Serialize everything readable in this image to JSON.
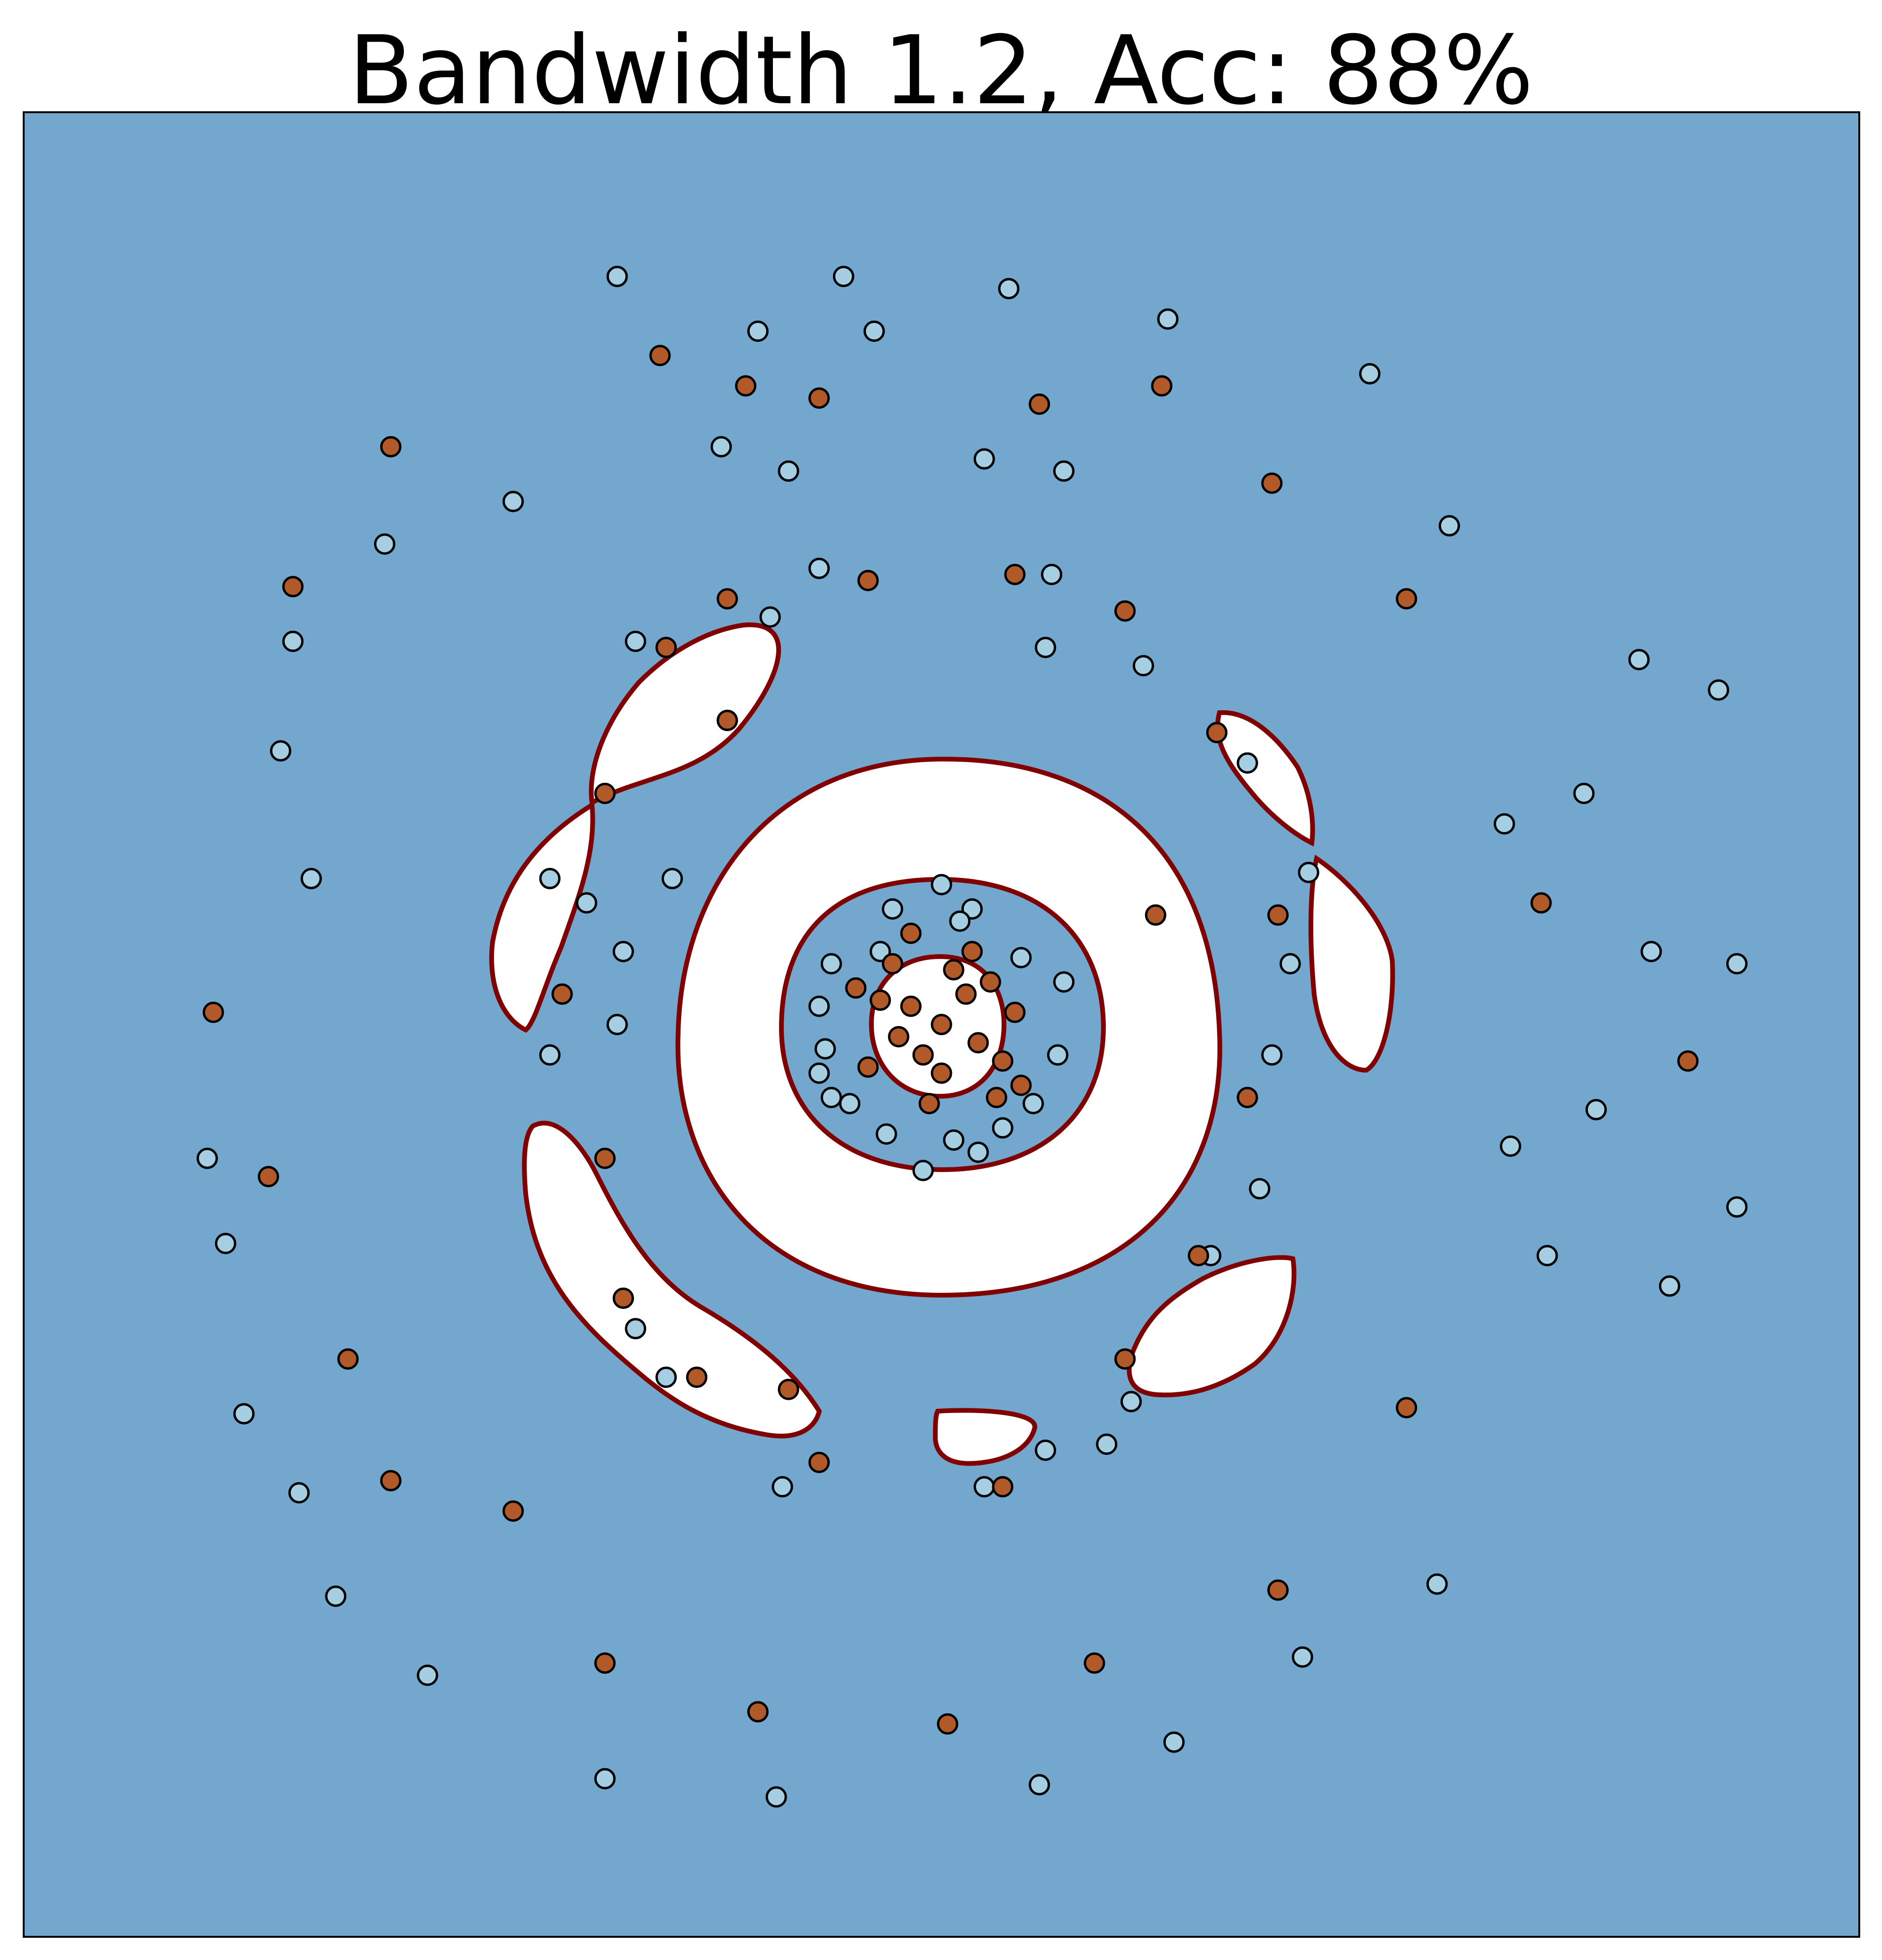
{
  "chart_data": {
    "type": "scatter",
    "title": "Bandwidth 1.2, Acc: 88%",
    "xlabel": "",
    "ylabel": "",
    "xlim": [
      -1.5,
      1.5
    ],
    "ylim": [
      -1.5,
      1.5
    ],
    "x_ticks": [],
    "y_ticks": [],
    "grid": false,
    "legend": "none",
    "colors": {
      "background_region": "#73a7cd",
      "decision_region": "#ffffff",
      "boundary": "#800000",
      "class_0_fill": "#a6cee3",
      "class_1_fill": "#b15928",
      "marker_edge": "#000000"
    },
    "series": [
      {
        "class": 0,
        "color": "#a6cee3",
        "points": [
          [
            0.0,
            0.23
          ],
          [
            0.05,
            0.19
          ],
          [
            -0.08,
            0.19
          ],
          [
            0.13,
            0.11
          ],
          [
            -0.18,
            0.1
          ],
          [
            -0.2,
            0.03
          ],
          [
            -0.19,
            -0.04
          ],
          [
            -0.18,
            -0.12
          ],
          [
            -0.09,
            -0.18
          ],
          [
            0.02,
            -0.19
          ],
          [
            0.1,
            -0.17
          ],
          [
            0.19,
            -0.05
          ],
          [
            0.2,
            0.07
          ],
          [
            -0.15,
            -0.13
          ],
          [
            0.15,
            -0.13
          ],
          [
            0.06,
            -0.21
          ],
          [
            -0.03,
            -0.24
          ],
          [
            0.03,
            0.17
          ],
          [
            -0.1,
            0.12
          ],
          [
            -0.2,
            -0.08
          ],
          [
            -0.64,
            0.24
          ],
          [
            -0.58,
            0.2
          ],
          [
            -0.44,
            0.24
          ],
          [
            -0.52,
            0.12
          ],
          [
            -0.64,
            -0.05
          ],
          [
            -0.53,
            0.0
          ],
          [
            -0.5,
            -0.5
          ],
          [
            -0.45,
            -0.58
          ],
          [
            -0.26,
            -0.76
          ],
          [
            0.07,
            -0.76
          ],
          [
            0.17,
            -0.7
          ],
          [
            0.27,
            -0.69
          ],
          [
            0.31,
            -0.62
          ],
          [
            0.44,
            -0.38
          ],
          [
            0.52,
            -0.27
          ],
          [
            0.54,
            -0.05
          ],
          [
            0.57,
            0.1
          ],
          [
            0.6,
            0.25
          ],
          [
            0.5,
            0.43
          ],
          [
            0.33,
            0.59
          ],
          [
            0.18,
            0.74
          ],
          [
            -0.2,
            0.75
          ],
          [
            -0.5,
            0.63
          ],
          [
            -0.35,
            0.5
          ],
          [
            -0.28,
            0.67
          ],
          [
            0.17,
            0.62
          ],
          [
            -0.53,
            1.23
          ],
          [
            -0.16,
            1.23
          ],
          [
            -0.3,
            1.14
          ],
          [
            0.11,
            1.21
          ],
          [
            0.37,
            1.16
          ],
          [
            0.7,
            1.07
          ],
          [
            0.83,
            0.82
          ],
          [
            1.14,
            0.6
          ],
          [
            1.05,
            0.38
          ],
          [
            0.92,
            0.33
          ],
          [
            1.16,
            0.12
          ],
          [
            1.07,
            -0.14
          ],
          [
            0.93,
            -0.2
          ],
          [
            0.99,
            -0.38
          ],
          [
            1.19,
            -0.43
          ],
          [
            0.81,
            -0.92
          ],
          [
            0.59,
            -1.04
          ],
          [
            0.38,
            -1.18
          ],
          [
            0.16,
            -1.25
          ],
          [
            -0.27,
            -1.27
          ],
          [
            -0.55,
            -1.24
          ],
          [
            -0.84,
            -1.07
          ],
          [
            -0.99,
            -0.94
          ],
          [
            -1.05,
            -0.77
          ],
          [
            -1.14,
            -0.64
          ],
          [
            -1.17,
            -0.36
          ],
          [
            -1.2,
            -0.22
          ],
          [
            -1.03,
            0.24
          ],
          [
            -1.08,
            0.45
          ],
          [
            -1.06,
            0.63
          ],
          [
            -0.91,
            0.79
          ],
          [
            -0.7,
            0.86
          ],
          [
            -0.36,
            0.95
          ],
          [
            -0.11,
            1.14
          ],
          [
            -0.25,
            0.91
          ],
          [
            0.07,
            0.93
          ],
          [
            0.2,
            0.91
          ],
          [
            1.3,
            0.1
          ],
          [
            1.3,
            -0.3
          ],
          [
            1.27,
            0.55
          ]
        ]
      },
      {
        "class": 1,
        "color": "#b15928",
        "points": [
          [
            0.0,
            0.0
          ],
          [
            0.04,
            0.05
          ],
          [
            -0.05,
            0.03
          ],
          [
            0.06,
            -0.03
          ],
          [
            -0.03,
            -0.05
          ],
          [
            0.08,
            0.07
          ],
          [
            -0.07,
            -0.02
          ],
          [
            0.02,
            0.09
          ],
          [
            -0.1,
            0.04
          ],
          [
            0.1,
            -0.06
          ],
          [
            0.0,
            -0.08
          ],
          [
            0.12,
            0.02
          ],
          [
            -0.12,
            -0.07
          ],
          [
            0.05,
            0.12
          ],
          [
            -0.08,
            0.1
          ],
          [
            -0.02,
            -0.13
          ],
          [
            0.13,
            -0.1
          ],
          [
            -0.14,
            0.06
          ],
          [
            0.09,
            -0.12
          ],
          [
            -0.05,
            0.15
          ],
          [
            -0.35,
            0.7
          ],
          [
            -0.45,
            0.62
          ],
          [
            -0.55,
            0.38
          ],
          [
            -0.62,
            0.05
          ],
          [
            -0.55,
            -0.22
          ],
          [
            -0.52,
            -0.45
          ],
          [
            -0.4,
            -0.58
          ],
          [
            -0.2,
            -0.72
          ],
          [
            0.1,
            -0.76
          ],
          [
            0.3,
            -0.55
          ],
          [
            0.42,
            -0.38
          ],
          [
            0.5,
            -0.12
          ],
          [
            0.55,
            0.18
          ],
          [
            0.45,
            0.48
          ],
          [
            0.3,
            0.68
          ],
          [
            0.12,
            0.74
          ],
          [
            -0.12,
            0.73
          ],
          [
            -0.35,
            0.5
          ],
          [
            -0.25,
            -0.6
          ],
          [
            0.35,
            0.18
          ],
          [
            -0.46,
            1.1
          ],
          [
            -0.32,
            1.05
          ],
          [
            -0.2,
            1.03
          ],
          [
            0.16,
            1.02
          ],
          [
            0.36,
            1.05
          ],
          [
            0.54,
            0.89
          ],
          [
            0.76,
            0.7
          ],
          [
            0.98,
            0.2
          ],
          [
            1.22,
            -0.06
          ],
          [
            0.76,
            -0.63
          ],
          [
            0.55,
            -0.93
          ],
          [
            0.25,
            -1.05
          ],
          [
            0.01,
            -1.15
          ],
          [
            -0.3,
            -1.13
          ],
          [
            -0.55,
            -1.05
          ],
          [
            -0.7,
            -0.8
          ],
          [
            -0.9,
            -0.75
          ],
          [
            -0.97,
            -0.55
          ],
          [
            -1.1,
            -0.25
          ],
          [
            -1.19,
            0.02
          ],
          [
            -1.06,
            0.72
          ],
          [
            -0.9,
            0.95
          ]
        ]
      }
    ]
  }
}
